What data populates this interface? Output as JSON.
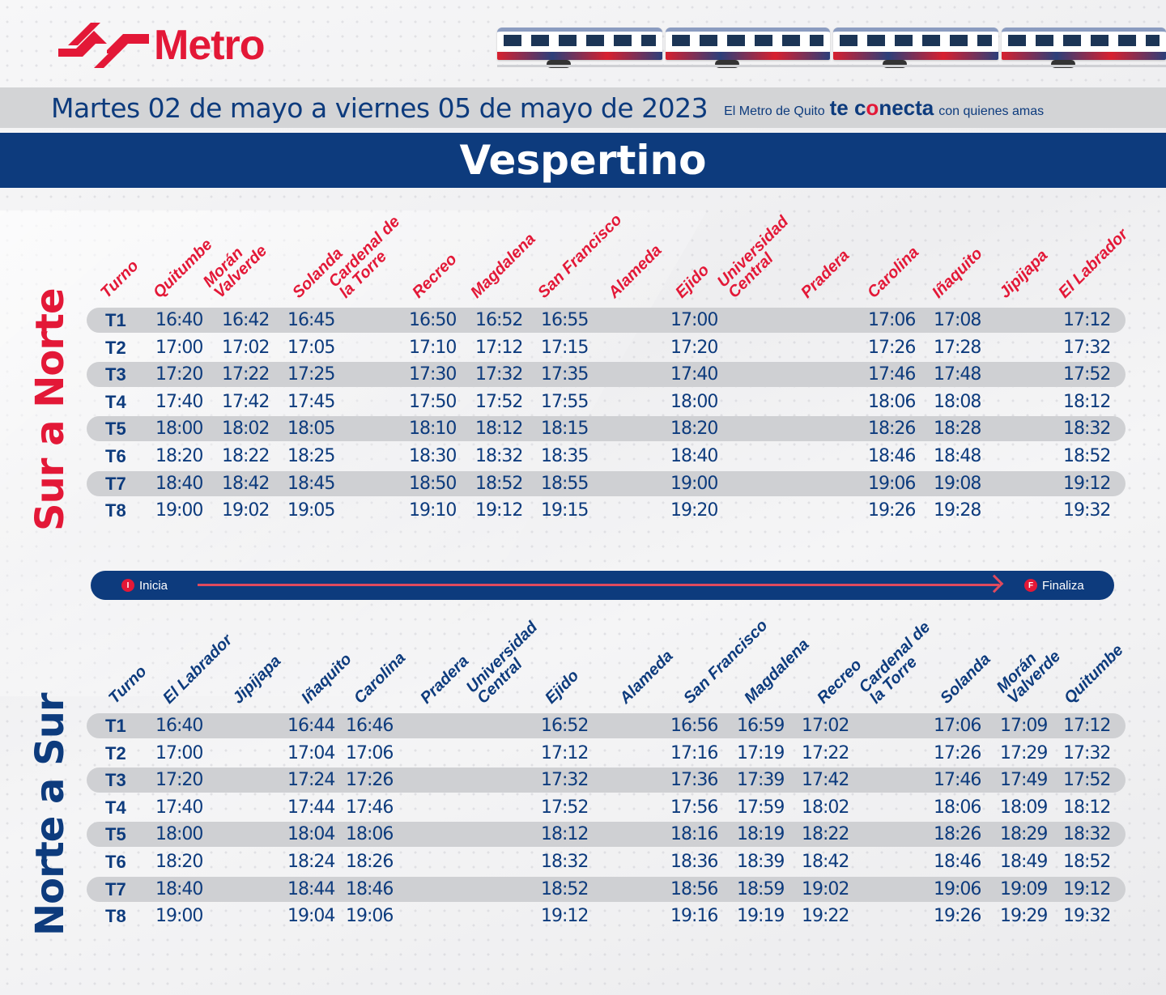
{
  "brand": {
    "name": "Metro",
    "color_red": "#e31837",
    "color_blue": "#0d3b7d"
  },
  "date_range": "Martes 02 de mayo a viernes 05 de mayo de 2023",
  "slogan": {
    "pre": "El Metro de Quito",
    "big_1": "te c",
    "big_o": "o",
    "big_2": "necta",
    "post": "con quienes amas"
  },
  "period_title": "Vespertino",
  "legend": {
    "start_badge": "I",
    "start_label": "Inicia",
    "end_badge": "F",
    "end_label": "Finaliza"
  },
  "sur_a_norte": {
    "label": "Sur a Norte",
    "headers": [
      "Turno",
      "Quitumbe",
      "Morán\nValverde",
      "Solanda",
      "Cardenal de\nla Torre",
      "Recreo",
      "Magdalena",
      "San Francisco",
      "Alameda",
      "Ejido",
      "Universidad\nCentral",
      "Pradera",
      "Carolina",
      "Iñaquito",
      "Jipijapa",
      "El Labrador"
    ],
    "rows": [
      [
        "T1",
        "16:40",
        "16:42",
        "16:45",
        "",
        "16:50",
        "16:52",
        "16:55",
        "",
        "17:00",
        "",
        "",
        "17:06",
        "17:08",
        "",
        "17:12"
      ],
      [
        "T2",
        "17:00",
        "17:02",
        "17:05",
        "",
        "17:10",
        "17:12",
        "17:15",
        "",
        "17:20",
        "",
        "",
        "17:26",
        "17:28",
        "",
        "17:32"
      ],
      [
        "T3",
        "17:20",
        "17:22",
        "17:25",
        "",
        "17:30",
        "17:32",
        "17:35",
        "",
        "17:40",
        "",
        "",
        "17:46",
        "17:48",
        "",
        "17:52"
      ],
      [
        "T4",
        "17:40",
        "17:42",
        "17:45",
        "",
        "17:50",
        "17:52",
        "17:55",
        "",
        "18:00",
        "",
        "",
        "18:06",
        "18:08",
        "",
        "18:12"
      ],
      [
        "T5",
        "18:00",
        "18:02",
        "18:05",
        "",
        "18:10",
        "18:12",
        "18:15",
        "",
        "18:20",
        "",
        "",
        "18:26",
        "18:28",
        "",
        "18:32"
      ],
      [
        "T6",
        "18:20",
        "18:22",
        "18:25",
        "",
        "18:30",
        "18:32",
        "18:35",
        "",
        "18:40",
        "",
        "",
        "18:46",
        "18:48",
        "",
        "18:52"
      ],
      [
        "T7",
        "18:40",
        "18:42",
        "18:45",
        "",
        "18:50",
        "18:52",
        "18:55",
        "",
        "19:00",
        "",
        "",
        "19:06",
        "19:08",
        "",
        "19:12"
      ],
      [
        "T8",
        "19:00",
        "19:02",
        "19:05",
        "",
        "19:10",
        "19:12",
        "19:15",
        "",
        "19:20",
        "",
        "",
        "19:26",
        "19:28",
        "",
        "19:32"
      ]
    ]
  },
  "norte_a_sur": {
    "label": "Norte a Sur",
    "headers": [
      "Turno",
      "El Labrador",
      "Jipijapa",
      "Iñaquito",
      "Carolina",
      "Pradera",
      "Universidad\nCentral",
      "Ejido",
      "Alameda",
      "San Francisco",
      "Magdalena",
      "Recreo",
      "Cardenal de\nla Torre",
      "Solanda",
      "Morán\nValverde",
      "Quitumbe"
    ],
    "rows": [
      [
        "T1",
        "16:40",
        "",
        "16:44",
        "16:46",
        "",
        "",
        "16:52",
        "",
        "16:56",
        "16:59",
        "17:02",
        "",
        "17:06",
        "17:09",
        "17:12"
      ],
      [
        "T2",
        "17:00",
        "",
        "17:04",
        "17:06",
        "",
        "",
        "17:12",
        "",
        "17:16",
        "17:19",
        "17:22",
        "",
        "17:26",
        "17:29",
        "17:32"
      ],
      [
        "T3",
        "17:20",
        "",
        "17:24",
        "17:26",
        "",
        "",
        "17:32",
        "",
        "17:36",
        "17:39",
        "17:42",
        "",
        "17:46",
        "17:49",
        "17:52"
      ],
      [
        "T4",
        "17:40",
        "",
        "17:44",
        "17:46",
        "",
        "",
        "17:52",
        "",
        "17:56",
        "17:59",
        "18:02",
        "",
        "18:06",
        "18:09",
        "18:12"
      ],
      [
        "T5",
        "18:00",
        "",
        "18:04",
        "18:06",
        "",
        "",
        "18:12",
        "",
        "18:16",
        "18:19",
        "18:22",
        "",
        "18:26",
        "18:29",
        "18:32"
      ],
      [
        "T6",
        "18:20",
        "",
        "18:24",
        "18:26",
        "",
        "",
        "18:32",
        "",
        "18:36",
        "18:39",
        "18:42",
        "",
        "18:46",
        "18:49",
        "18:52"
      ],
      [
        "T7",
        "18:40",
        "",
        "18:44",
        "18:46",
        "",
        "",
        "18:52",
        "",
        "18:56",
        "18:59",
        "19:02",
        "",
        "19:06",
        "19:09",
        "19:12"
      ],
      [
        "T8",
        "19:00",
        "",
        "19:04",
        "19:06",
        "",
        "",
        "19:12",
        "",
        "19:16",
        "19:19",
        "19:22",
        "",
        "19:26",
        "19:29",
        "19:32"
      ]
    ]
  }
}
